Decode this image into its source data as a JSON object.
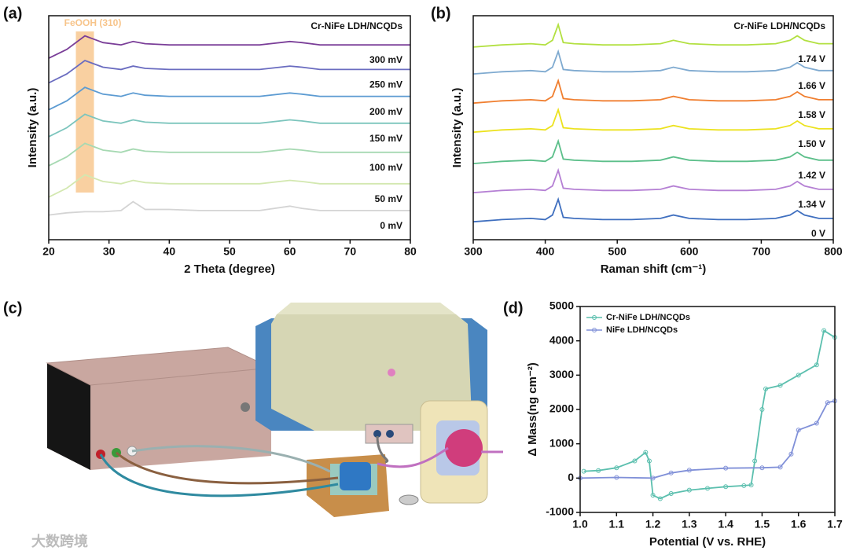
{
  "panel_labels": [
    "(a)",
    "(b)",
    "(c)",
    "(d)"
  ],
  "watermark": "大数跨境",
  "chart_data": [
    {
      "type": "line",
      "xlabel": "2 Theta (degree)",
      "ylabel": "Intensity (a.u.)",
      "annotation": "Cr-NiFe LDH/NCQDs",
      "highlight": {
        "label": "FeOOH (310)",
        "range": [
          24.5,
          27.5
        ],
        "color": "#f7c48a"
      },
      "legend": "inline",
      "x": [
        20,
        23,
        26,
        29,
        32,
        34,
        36,
        40,
        45,
        50,
        55,
        60,
        62,
        65,
        70,
        75,
        80
      ],
      "xlim": [
        20,
        80
      ],
      "xticks": [
        20,
        30,
        40,
        50,
        60,
        70,
        80
      ],
      "ylim": [
        0,
        100
      ],
      "series": [
        {
          "name": "0 mV",
          "color": "#d4d4d4",
          "values": [
            11,
            12,
            12.5,
            12.5,
            13,
            17,
            13.5,
            13.5,
            13,
            13,
            13,
            15,
            14,
            13,
            13,
            13,
            13
          ]
        },
        {
          "name": "50 mV",
          "color": "#d3e8b0",
          "values": [
            19,
            23,
            29,
            26,
            25,
            26.5,
            25.5,
            25,
            25,
            25,
            25,
            26.5,
            26,
            25,
            25,
            25,
            25
          ]
        },
        {
          "name": "100 mV",
          "color": "#a6d9b2",
          "values": [
            33,
            37,
            43,
            40,
            39,
            40.5,
            39.5,
            39,
            39,
            39,
            39,
            40.5,
            40,
            39,
            39,
            39,
            39
          ]
        },
        {
          "name": "150 mV",
          "color": "#7cc5bd",
          "values": [
            46,
            50,
            56,
            53,
            52,
            53.5,
            52.5,
            52,
            52,
            52,
            52,
            53.5,
            53,
            52,
            52,
            52,
            52
          ]
        },
        {
          "name": "200 mV",
          "color": "#5c9bd2",
          "values": [
            58,
            62,
            68,
            65,
            64,
            65.5,
            64.5,
            64,
            64,
            64,
            64,
            65.5,
            65,
            64,
            64,
            64,
            64
          ]
        },
        {
          "name": "250 mV",
          "color": "#6a6cc0",
          "values": [
            70,
            74,
            80,
            77,
            76,
            77.5,
            76.5,
            76,
            76,
            76,
            76,
            77.5,
            77,
            76,
            76,
            76,
            76
          ]
        },
        {
          "name": "300 mV",
          "color": "#7a3e98",
          "values": [
            81,
            85,
            91,
            88,
            87,
            88.5,
            87.5,
            87,
            87,
            87,
            87,
            88.5,
            88,
            87,
            87,
            87,
            87
          ]
        }
      ]
    },
    {
      "type": "line",
      "xlabel": "Raman shift (cm⁻¹)",
      "ylabel": "Intensity (a.u.)",
      "annotation": "Cr-NiFe LDH/NCQDs",
      "legend": "inline",
      "x": [
        300,
        340,
        380,
        400,
        410,
        418,
        425,
        440,
        480,
        520,
        560,
        578,
        600,
        640,
        680,
        720,
        740,
        750,
        760,
        780,
        800
      ],
      "xlim": [
        300,
        800
      ],
      "xticks": [
        300,
        400,
        500,
        600,
        700,
        800
      ],
      "ylim": [
        0,
        100
      ],
      "series": [
        {
          "name": "0 V",
          "color": "#3f6fbf",
          "values": [
            8,
            9,
            9.5,
            9,
            11,
            18,
            10,
            9.5,
            9,
            9,
            9.5,
            11,
            9.5,
            9,
            9,
            9.5,
            11,
            13,
            11,
            9.5,
            9.5
          ]
        },
        {
          "name": "1.34 V",
          "color": "#b580d4",
          "values": [
            21,
            22,
            22.5,
            22,
            24,
            31,
            23,
            22.5,
            22,
            22,
            22.5,
            24,
            22.5,
            22,
            22,
            22.5,
            24,
            26,
            24,
            22.5,
            22.5
          ]
        },
        {
          "name": "1.42 V",
          "color": "#5cbf8a",
          "values": [
            34,
            35,
            35.5,
            35,
            37,
            44,
            36,
            35.5,
            35,
            35,
            35.5,
            37,
            35.5,
            35,
            35,
            35.5,
            37,
            39,
            37,
            35.5,
            35.5
          ]
        },
        {
          "name": "1.50 V",
          "color": "#ece21e",
          "values": [
            48,
            49,
            49.5,
            49,
            51,
            58,
            50,
            49.5,
            49,
            49,
            49.5,
            51,
            49.5,
            49,
            49,
            49.5,
            51,
            53,
            51,
            49.5,
            49.5
          ]
        },
        {
          "name": "1.58 V",
          "color": "#f07f30",
          "values": [
            61,
            62,
            62.5,
            62,
            64,
            71,
            63,
            62.5,
            62,
            62,
            62.5,
            64,
            62.5,
            62,
            62,
            62.5,
            64,
            66,
            64,
            62.5,
            62.5
          ]
        },
        {
          "name": "1.66 V",
          "color": "#7faad0",
          "values": [
            74,
            75,
            75.5,
            75,
            77,
            84,
            76,
            75.5,
            75,
            75,
            75.5,
            77,
            75.5,
            75,
            75,
            75.5,
            77,
            79,
            77,
            75.5,
            75.5
          ]
        },
        {
          "name": "1.74 V",
          "color": "#b2e040",
          "values": [
            86,
            87,
            87.5,
            87,
            89,
            96,
            88,
            87.5,
            87,
            87,
            87.5,
            89,
            87.5,
            87,
            87,
            87.5,
            89,
            91,
            89,
            87.5,
            87.5
          ]
        }
      ]
    },
    {
      "type": "line",
      "xlabel": "Potential (V vs. RHE)",
      "ylabel": "Δ Mass(ng cm⁻²)",
      "legend": "upper left",
      "xlim": [
        1.0,
        1.7
      ],
      "xticks": [
        {
          "value": 1,
          "label": "1.0"
        },
        1.1,
        1.2,
        1.3,
        1.4,
        1.5,
        1.6,
        1.7
      ],
      "ylim": [
        -1000,
        5000
      ],
      "yticks": [
        -1000,
        0,
        1000,
        2000,
        3000,
        4000,
        5000
      ],
      "series": [
        {
          "name": "Cr-NiFe LDH/NCQDs",
          "color": "#5bbfae",
          "marker": true,
          "x": [
            1.01,
            1.05,
            1.1,
            1.15,
            1.18,
            1.19,
            1.2,
            1.22,
            1.25,
            1.3,
            1.35,
            1.4,
            1.45,
            1.47,
            1.48,
            1.5,
            1.51,
            1.55,
            1.6,
            1.65,
            1.67,
            1.7
          ],
          "values": [
            200,
            220,
            300,
            500,
            750,
            500,
            -500,
            -600,
            -450,
            -350,
            -300,
            -250,
            -220,
            -200,
            500,
            2000,
            2600,
            2700,
            3000,
            3300,
            4300,
            4100
          ]
        },
        {
          "name": "NiFe LDH/NCQDs",
          "color": "#8090d8",
          "marker": true,
          "x": [
            1.0,
            1.1,
            1.2,
            1.25,
            1.3,
            1.4,
            1.5,
            1.55,
            1.58,
            1.6,
            1.65,
            1.68,
            1.7
          ],
          "values": [
            0,
            20,
            0,
            150,
            230,
            290,
            300,
            320,
            700,
            1400,
            1600,
            2200,
            2250
          ]
        }
      ]
    }
  ]
}
